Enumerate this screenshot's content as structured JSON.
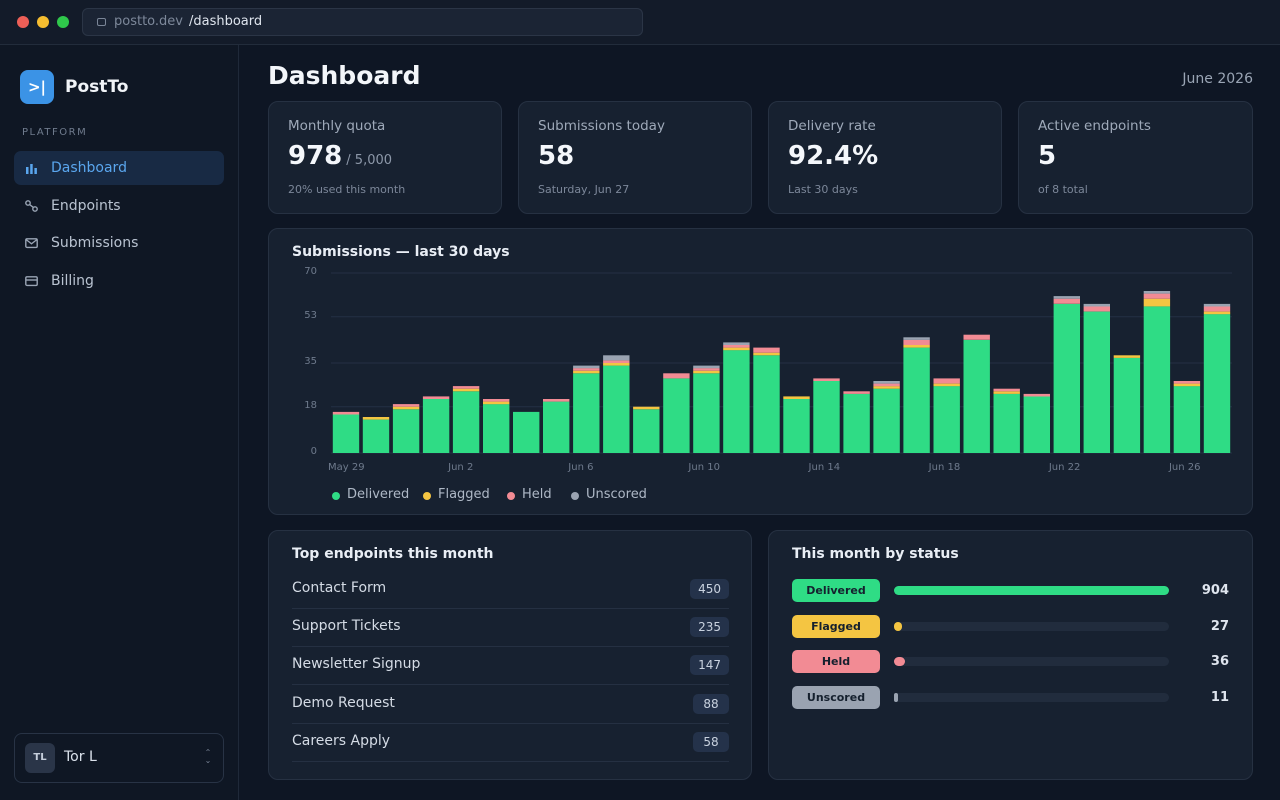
{
  "browser": {
    "host": "postto.dev",
    "path": "/dashboard"
  },
  "app": {
    "logo_text": ">|",
    "name": "PostTo"
  },
  "sidebar": {
    "section_label": "PLATFORM",
    "items": [
      {
        "label": "Dashboard",
        "icon": "bar-chart-icon",
        "active": true
      },
      {
        "label": "Endpoints",
        "icon": "link-icon",
        "active": false
      },
      {
        "label": "Submissions",
        "icon": "mail-icon",
        "active": false
      },
      {
        "label": "Billing",
        "icon": "credit-card-icon",
        "active": false
      }
    ],
    "user": {
      "initials": "TL",
      "name": "Tor L",
      "chevron": "⌃⌄"
    }
  },
  "header": {
    "title": "Dashboard",
    "date": "June 2026"
  },
  "stats": [
    {
      "label": "Monthly quota",
      "value": "978",
      "of": "/ 5,000",
      "sub": "20% used this month"
    },
    {
      "label": "Submissions today",
      "value": "58",
      "of": "",
      "sub": "Saturday, Jun 27"
    },
    {
      "label": "Delivery rate",
      "value": "92.4%",
      "of": "",
      "sub": "Last 30 days"
    },
    {
      "label": "Active endpoints",
      "value": "5",
      "of": "",
      "sub": "of 8 total"
    }
  ],
  "chart_title": "Submissions — last 30 days",
  "chart_data": {
    "type": "bar",
    "stacked": true,
    "title": "Submissions — last 30 days",
    "ylim": [
      0,
      70
    ],
    "yticks": [
      "0",
      "18",
      "35",
      "53",
      "70"
    ],
    "xtick_labels": [
      "May 29",
      "Jun 2",
      "Jun 6",
      "Jun 10",
      "Jun 14",
      "Jun 18",
      "Jun 22",
      "Jun 26"
    ],
    "xtick_every": 4,
    "grid": true,
    "legend": "bottom-left",
    "categories": [
      "May 29",
      "May 30",
      "May 31",
      "Jun 1",
      "Jun 2",
      "Jun 3",
      "Jun 4",
      "Jun 5",
      "Jun 6",
      "Jun 7",
      "Jun 8",
      "Jun 9",
      "Jun 10",
      "Jun 11",
      "Jun 12",
      "Jun 13",
      "Jun 14",
      "Jun 15",
      "Jun 16",
      "Jun 17",
      "Jun 18",
      "Jun 19",
      "Jun 20",
      "Jun 21",
      "Jun 22",
      "Jun 23",
      "Jun 24",
      "Jun 25",
      "Jun 26",
      "Jun 27"
    ],
    "series": [
      {
        "name": "Delivered",
        "color": "#2fdc85",
        "values": [
          15,
          13,
          17,
          21,
          24,
          19,
          16,
          20,
          31,
          34,
          17,
          29,
          31,
          40,
          38,
          21,
          28,
          23,
          25,
          41,
          26,
          44,
          23,
          22,
          58,
          55,
          37,
          57,
          26,
          54
        ]
      },
      {
        "name": "Flagged",
        "color": "#f4c542",
        "values": [
          0,
          1,
          1,
          0,
          1,
          1,
          0,
          0,
          1,
          1,
          1,
          0,
          1,
          1,
          1,
          1,
          0,
          0,
          1,
          1,
          1,
          0,
          1,
          0,
          0,
          0,
          1,
          3,
          1,
          1
        ]
      },
      {
        "name": "Held",
        "color": "#f28b94",
        "values": [
          1,
          0,
          1,
          1,
          1,
          1,
          0,
          1,
          1,
          1,
          0,
          2,
          1,
          1,
          2,
          0,
          1,
          1,
          1,
          2,
          2,
          2,
          1,
          1,
          2,
          2,
          0,
          2,
          1,
          2
        ]
      },
      {
        "name": "Unscored",
        "color": "#9aa3b1",
        "values": [
          0,
          0,
          0,
          0,
          0,
          0,
          0,
          0,
          1,
          2,
          0,
          0,
          1,
          1,
          0,
          0,
          0,
          0,
          1,
          1,
          0,
          0,
          0,
          0,
          1,
          1,
          0,
          1,
          0,
          1
        ]
      }
    ]
  },
  "endpoints_title": "Top endpoints this month",
  "endpoints": [
    {
      "name": "Contact Form",
      "count": "450"
    },
    {
      "name": "Support Tickets",
      "count": "235"
    },
    {
      "name": "Newsletter Signup",
      "count": "147"
    },
    {
      "name": "Demo Request",
      "count": "88"
    },
    {
      "name": "Careers Apply",
      "count": "58"
    }
  ],
  "status_title": "This month by status",
  "status": [
    {
      "label": "Delivered",
      "value": 904,
      "display": "904",
      "color": "#2fdc85",
      "fraction": 1.0
    },
    {
      "label": "Flagged",
      "value": 27,
      "display": "27",
      "color": "#f4c542",
      "fraction": 0.03
    },
    {
      "label": "Held",
      "value": 36,
      "display": "36",
      "color": "#f28b94",
      "fraction": 0.04
    },
    {
      "label": "Unscored",
      "value": 11,
      "display": "11",
      "color": "#9aa3b1",
      "fraction": 0.012
    }
  ]
}
